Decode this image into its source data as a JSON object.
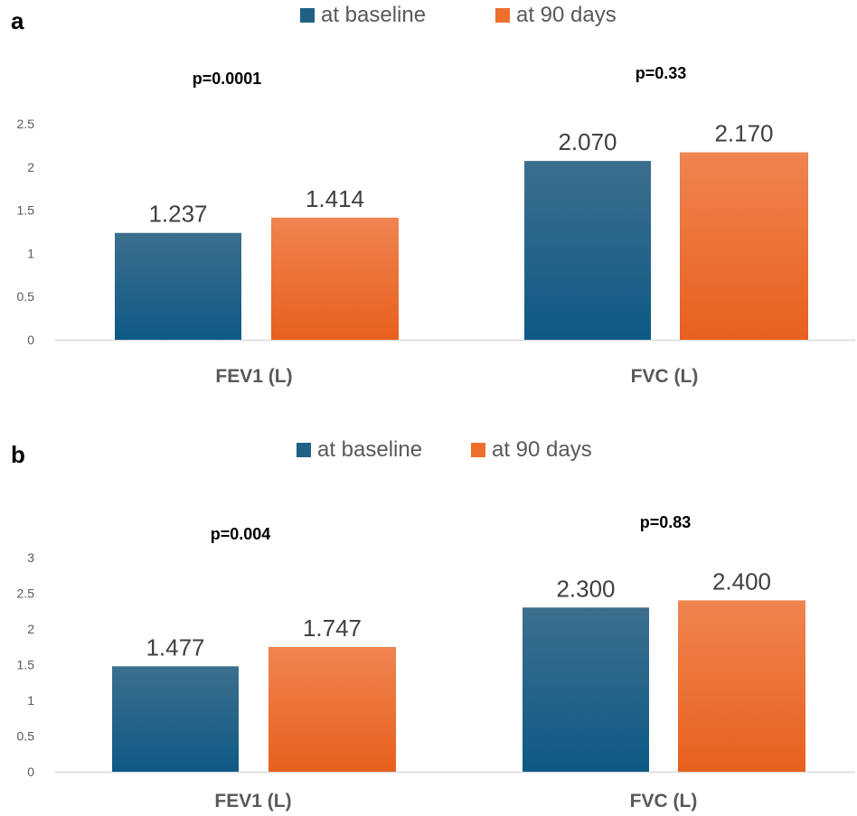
{
  "chart_data": [
    {
      "type": "bar",
      "panel_label": "a",
      "categories": [
        "FEV1 (L)",
        "FVC (L)"
      ],
      "series": [
        {
          "name": "at baseline",
          "values": [
            1.237,
            2.07
          ],
          "labels": [
            "1.237",
            "2.070"
          ]
        },
        {
          "name": "at 90 days",
          "values": [
            1.414,
            2.17
          ],
          "labels": [
            "1.414",
            "2.170"
          ]
        }
      ],
      "annotations": [
        "p=0.0001",
        "p=0.33"
      ],
      "yticks": [
        "0",
        "0.5",
        "1",
        "1.5",
        "2",
        "2.5"
      ],
      "ylim": [
        0,
        2.5
      ],
      "legend_position": "top-center",
      "grid": false
    },
    {
      "type": "bar",
      "panel_label": "b",
      "categories": [
        "FEV1 (L)",
        "FVC (L)"
      ],
      "series": [
        {
          "name": "at baseline",
          "values": [
            1.477,
            2.3
          ],
          "labels": [
            "1.477",
            "2.300"
          ]
        },
        {
          "name": "at 90 days",
          "values": [
            1.747,
            2.4
          ],
          "labels": [
            "1.747",
            "2.400"
          ]
        }
      ],
      "annotations": [
        "p=0.004",
        "p=0.83"
      ],
      "yticks": [
        "0",
        "0.5",
        "1",
        "1.5",
        "2",
        "2.5",
        "3"
      ],
      "ylim": [
        0,
        3
      ],
      "legend_position": "top-center",
      "grid": false
    }
  ],
  "colors": {
    "baseline": "#1f6185",
    "day90": "#ec6f2c",
    "axis": "#d9d9d9",
    "tick_text": "#595959",
    "value_text": "#404040"
  }
}
